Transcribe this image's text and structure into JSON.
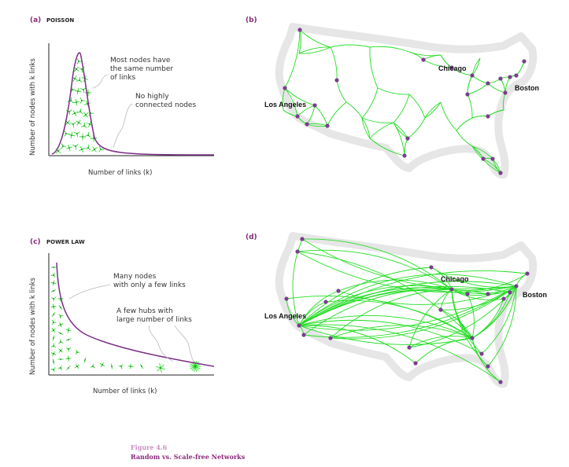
{
  "colors": {
    "curve": "#7b2d86",
    "link": "#22dd22",
    "node": "#7a3e8e",
    "map_outline": "#e6e6e6",
    "panel_letter": "#8a2a7a",
    "figure_number": "#c98ec0"
  },
  "panels": {
    "a": {
      "letter": "(a)",
      "title": "POISSON",
      "ylabel": "Number of nodes with k links",
      "xlabel": "Number of links (k)",
      "note_same": [
        "Most nodes have",
        "the same number",
        "of links"
      ],
      "note_no_hubs": [
        "No highly",
        "connected nodes"
      ]
    },
    "b": {
      "letter": "(b)",
      "cities": {
        "chicago": "Chicago",
        "boston": "Boston",
        "los_angeles": "Los Angeles"
      }
    },
    "c": {
      "letter": "(c)",
      "title": "POWER LAW",
      "ylabel": "Number of nodes with k links",
      "xlabel": "Number of links (k)",
      "note_many": [
        "Many nodes",
        "with only a few links"
      ],
      "note_hubs": [
        "A few hubs with",
        "large number of links"
      ]
    },
    "d": {
      "letter": "(d)",
      "cities": {
        "chicago": "Chicago",
        "boston": "Boston",
        "los_angeles": "Los Angeles"
      }
    }
  },
  "caption": {
    "number": "Figure 4.6",
    "title": "Random vs. Scale-free Networks"
  }
}
